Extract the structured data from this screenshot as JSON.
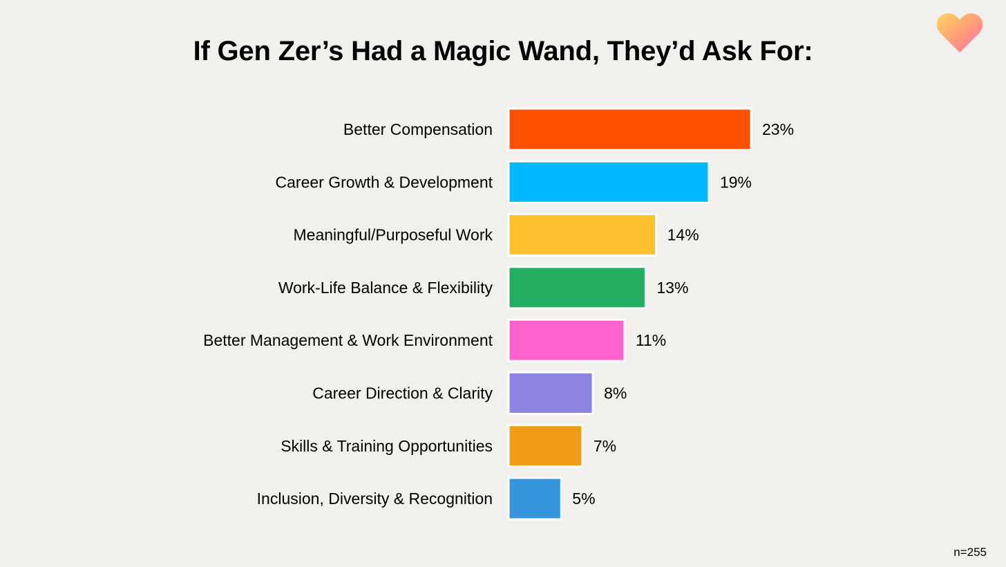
{
  "title": "If Gen Zer’s Had a Magic Wand, They’d Ask For:",
  "logo_icon": "heart-icon",
  "footnote": "n=255",
  "chart_data": {
    "type": "bar",
    "orientation": "horizontal",
    "title": "If Gen Zer’s Had a Magic Wand, They’d Ask For:",
    "xlabel": "",
    "ylabel": "",
    "grid": false,
    "legend": "none",
    "xlim": [
      0,
      23
    ],
    "categories": [
      "Better Compensation",
      "Career Growth & Development",
      "Meaningful/Purposeful Work",
      "Work-Life Balance & Flexibility",
      "Better Management & Work Environment",
      "Career Direction & Clarity",
      "Skills & Training Opportunities",
      "Inclusion, Diversity & Recognition"
    ],
    "values": [
      23,
      19,
      14,
      13,
      11,
      8,
      7,
      5
    ],
    "data_labels": [
      "23%",
      "19%",
      "14%",
      "13%",
      "11%",
      "8%",
      "7%",
      "5%"
    ],
    "colors": [
      "#ff4f00",
      "#00b8ff",
      "#fcc12c",
      "#24ae62",
      "#ff62cc",
      "#8d84e1",
      "#f29b17",
      "#3796db"
    ]
  }
}
